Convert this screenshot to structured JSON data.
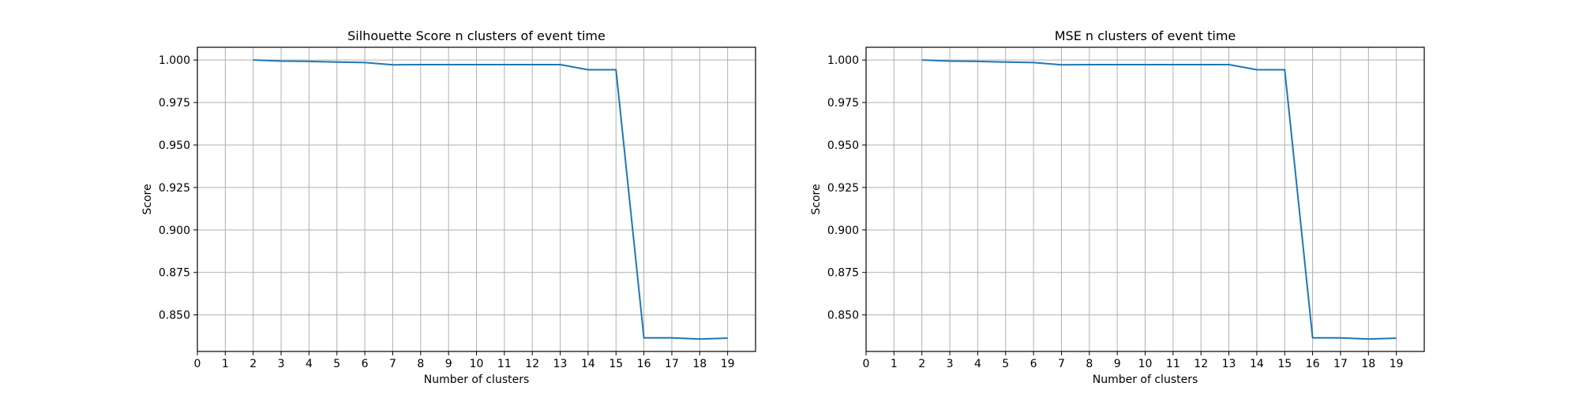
{
  "chart_data": [
    {
      "type": "line",
      "title": "Silhouette Score n clusters of event time",
      "xlabel": "Number of clusters",
      "ylabel": "Score",
      "xlim": [
        0,
        20
      ],
      "ylim": [
        0.8285,
        1.0075
      ],
      "grid": true,
      "legend": "none",
      "line_color": "#1f77b4",
      "x_ticks": [
        0,
        1,
        2,
        3,
        4,
        5,
        6,
        7,
        8,
        9,
        10,
        11,
        12,
        13,
        14,
        15,
        16,
        17,
        18,
        19
      ],
      "y_ticks": [
        0.85,
        0.875,
        0.9,
        0.925,
        0.95,
        0.975,
        1.0
      ],
      "y_tick_labels": [
        "0.850",
        "0.875",
        "0.900",
        "0.925",
        "0.950",
        "0.975",
        "1.000"
      ],
      "series": [
        {
          "x": [
            2,
            3,
            4,
            5,
            6,
            7,
            8,
            9,
            10,
            11,
            12,
            13,
            14,
            15,
            16,
            17,
            18,
            19
          ],
          "values": [
            1.0,
            0.9994,
            0.9992,
            0.9988,
            0.9985,
            0.9972,
            0.9973,
            0.9973,
            0.9973,
            0.9973,
            0.9973,
            0.9973,
            0.9943,
            0.9943,
            0.8365,
            0.8365,
            0.8358,
            0.8363
          ]
        }
      ]
    },
    {
      "type": "line",
      "title": "MSE n clusters of event time",
      "xlabel": "Number of clusters",
      "ylabel": "Score",
      "xlim": [
        0,
        20
      ],
      "ylim": [
        0.8285,
        1.0075
      ],
      "grid": true,
      "legend": "none",
      "line_color": "#1f77b4",
      "x_ticks": [
        0,
        1,
        2,
        3,
        4,
        5,
        6,
        7,
        8,
        9,
        10,
        11,
        12,
        13,
        14,
        15,
        16,
        17,
        18,
        19
      ],
      "y_ticks": [
        0.85,
        0.875,
        0.9,
        0.925,
        0.95,
        0.975,
        1.0
      ],
      "y_tick_labels": [
        "0.850",
        "0.875",
        "0.900",
        "0.925",
        "0.950",
        "0.975",
        "1.000"
      ],
      "series": [
        {
          "x": [
            2,
            3,
            4,
            5,
            6,
            7,
            8,
            9,
            10,
            11,
            12,
            13,
            14,
            15,
            16,
            17,
            18,
            19
          ],
          "values": [
            1.0,
            0.9994,
            0.9992,
            0.9988,
            0.9985,
            0.9972,
            0.9973,
            0.9973,
            0.9973,
            0.9973,
            0.9973,
            0.9973,
            0.9943,
            0.9943,
            0.8365,
            0.8365,
            0.8358,
            0.8363
          ]
        }
      ]
    }
  ]
}
